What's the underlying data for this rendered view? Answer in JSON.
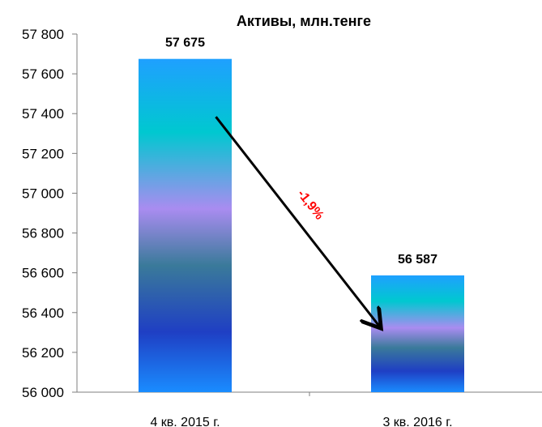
{
  "chart_data": {
    "type": "bar",
    "title": "Активы, млн.тенге",
    "categories": [
      "4 кв. 2015 г.",
      "3 кв. 2016 г."
    ],
    "values": [
      57675,
      56587
    ],
    "data_labels": [
      "57 675",
      "56 587"
    ],
    "ylim": [
      56000,
      57800
    ],
    "yticks": [
      56000,
      56200,
      56400,
      56600,
      56800,
      57000,
      57200,
      57400,
      57600,
      57800
    ],
    "ytick_labels": [
      "56 000",
      "56 200",
      "56 400",
      "56 600",
      "56 800",
      "57 000",
      "57 200",
      "57 400",
      "57 600",
      "57 800"
    ],
    "xlabel": "",
    "ylabel": "",
    "grid": false,
    "annotation": {
      "text": "-1,9%",
      "color": "#ff0000"
    },
    "bar_gradient": [
      "#1a8cff",
      "#1f3fc4",
      "#3a7a9a",
      "#a98cf0",
      "#00c8d0",
      "#1fa0ff"
    ]
  }
}
